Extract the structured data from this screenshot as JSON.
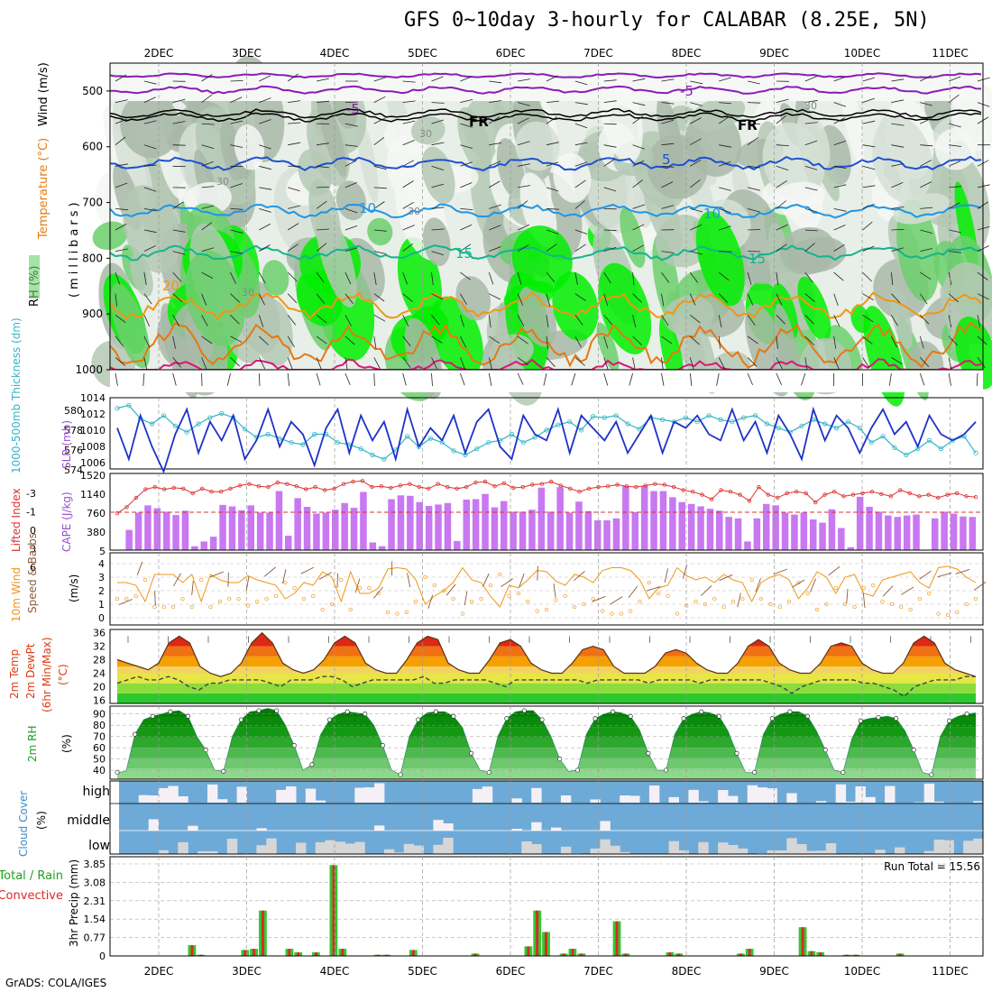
{
  "chart_data": {
    "type": "meteogram",
    "title": "GFS 0~10day 3-hourly for CALABAR (8.25E, 5N)",
    "credit": "GrADS: COLA/IGES",
    "time_axis": [
      "2DEC",
      "3DEC",
      "4DEC",
      "5DEC",
      "6DEC",
      "7DEC",
      "8DEC",
      "9DEC",
      "10DEC",
      "11DEC"
    ],
    "colors": {
      "rh_green": "#00ee00",
      "rh_mid": "#6ccf6c",
      "rh_gray": "#b4c8b4",
      "temp_neg5": "#8a1cb4",
      "temp_fr": "#000000",
      "temp_5": "#1e50d2",
      "temp_10": "#1e96e6",
      "temp_15": "#14b48c",
      "temp_20": "#f09614",
      "temp_25": "#e67814",
      "temp_30": "#dc1478",
      "slp": "#1e32c8",
      "thickness": "#32b4c8",
      "cape_bar": "#c878f0",
      "lifted_index": "#dc3232",
      "wind_speed": "#f09614",
      "cloud": "#6eaad7",
      "cloud_clear": "#f4f0f6",
      "precip_total": "#32c832",
      "precip_conv": "#dc2828"
    },
    "panels": [
      {
        "id": "upper-air",
        "labels": [
          "RH (%)",
          "Temperature (°C)",
          "Wind (m/s)",
          "(millibars)"
        ],
        "yticks": [
          500,
          600,
          700,
          800,
          900,
          1000
        ],
        "contour_labels": [
          "-5",
          "-5",
          "FR",
          "FR",
          "5",
          "10",
          "10",
          "15",
          "15",
          "20",
          "30",
          "30",
          "30",
          "30",
          "30"
        ]
      },
      {
        "id": "slp-thickness",
        "labels": [
          "1000-500mb Thickness (dm)",
          "SLP (mb)"
        ],
        "left_ticks": [
          "580",
          "578",
          "576",
          "574"
        ],
        "right_ticks": [
          "1014",
          "1012",
          "1010",
          "1008",
          "1006"
        ],
        "slp": [
          1010,
          1005,
          1012,
          1007,
          1003,
          1009,
          1013,
          1006,
          1011,
          1008,
          1012,
          1005,
          1008,
          1013,
          1007,
          1011,
          1009,
          1004,
          1010,
          1013,
          1006,
          1012,
          1008,
          1011,
          1005,
          1013,
          1007,
          1010,
          1008,
          1012,
          1006,
          1011,
          1013,
          1007,
          1005,
          1012,
          1009,
          1008,
          1013,
          1006,
          1012,
          1010,
          1008,
          1011,
          1006,
          1009,
          1012,
          1006,
          1011,
          1010,
          1012,
          1009,
          1008,
          1013,
          1008,
          1011,
          1006,
          1012,
          1009,
          1005,
          1013,
          1008,
          1012,
          1010,
          1006,
          1010,
          1013,
          1009,
          1011,
          1007,
          1012,
          1009,
          1008,
          1009,
          1011
        ],
        "thickness": [
          579.5,
          579.8,
          578.5,
          578,
          578.8,
          577.8,
          577.2,
          578,
          578.6,
          579,
          578.6,
          577.5,
          576.7,
          577,
          576.6,
          576.2,
          576,
          577,
          577,
          576.2,
          576,
          575.6,
          575,
          574.6,
          575.5,
          576.8,
          575.8,
          576.6,
          576.2,
          575.4,
          575,
          575.6,
          576.2,
          576.4,
          577,
          576.2,
          576.7,
          577.4,
          577.9,
          578.2,
          577.4,
          578.7,
          578.6,
          578.8,
          578,
          577.5,
          578.6,
          578.4,
          578.2,
          578.6,
          578.2,
          578.8,
          578.4,
          578.2,
          578.6,
          578.8,
          578,
          577.6,
          577.2,
          577.8,
          578.4,
          578,
          577.6,
          578.2,
          577.6,
          576.2,
          576.8,
          575.7,
          575,
          575.6,
          576.4,
          575.6,
          576.4,
          576.8,
          575.2
        ]
      },
      {
        "id": "cape-li",
        "labels": [
          "Lifted Index",
          "CAPE (J/kg)"
        ],
        "left_ticks": [
          "-3",
          "-1",
          "0",
          "3",
          "6"
        ],
        "right_ticks": [
          "1520",
          "1140",
          "760",
          "380",
          "5"
        ],
        "cape": [
          0,
          420,
          780,
          930,
          870,
          800,
          730,
          820,
          80,
          180,
          280,
          940,
          910,
          830,
          930,
          780,
          780,
          1230,
          300,
          1080,
          900,
          760,
          780,
          840,
          980,
          880,
          1210,
          160,
          80,
          1060,
          1140,
          1130,
          1000,
          920,
          950,
          980,
          190,
          1050,
          1060,
          1170,
          890,
          1020,
          800,
          800,
          840,
          1300,
          800,
          1310,
          780,
          1010,
          810,
          620,
          620,
          660,
          1330,
          790,
          1330,
          1230,
          1230,
          1100,
          1000,
          960,
          910,
          860,
          820,
          690,
          660,
          180,
          660,
          960,
          930,
          780,
          740,
          780,
          640,
          570,
          850,
          460,
          60,
          1110,
          900,
          800,
          720,
          690,
          720,
          740,
          10,
          660,
          800,
          760,
          700,
          690
        ],
        "lifted_index": [
          1.2,
          0.4,
          -0.8,
          -1.9,
          -2.2,
          -1.9,
          -2.1,
          -2.0,
          -1.4,
          -2.0,
          -1.6,
          -1.6,
          -2.0,
          -2.4,
          -2.6,
          -2.3,
          -2.2,
          -2.8,
          -2.6,
          -2.3,
          -1.9,
          -2.2,
          -1.8,
          -2.0,
          -2.6,
          -2.9,
          -3.0,
          -2.2,
          -2.3,
          -2.1,
          -2.4,
          -2.6,
          -2.2,
          -2.0,
          -2.6,
          -2.2,
          -2.0,
          -2.2,
          -2.8,
          -2.9,
          -2.3,
          -2.7,
          -2.1,
          -2.2,
          -2.5,
          -2.6,
          -2.9,
          -2.4,
          -2.0,
          -1.6,
          -2.0,
          -2.2,
          -2.3,
          -2.5,
          -2.3,
          -2.2,
          -2.4,
          -2.6,
          -2.5,
          -2.2,
          -1.8,
          -1.6,
          -1.2,
          -0.6,
          -1.8,
          -1.6,
          -1.2,
          -0.4,
          -2.2,
          -1.2,
          -0.8,
          -1.4,
          -1.6,
          -1.4,
          -0.2,
          -1.2,
          -1.6,
          -1.0,
          -1.2,
          -1.4,
          -1.6,
          -1.3,
          -1.0,
          -1.8,
          -1.4,
          -1.0,
          -1.2,
          -0.8,
          -1.2,
          -1.4,
          -1.0,
          -0.9
        ]
      },
      {
        "id": "wind10m",
        "labels": [
          "10m Wind",
          "Speed & Barbs",
          "(m/s)"
        ],
        "yticks": [
          "4",
          "3",
          "2",
          "1",
          "0"
        ],
        "speed": [
          1.4,
          1.4,
          1.6,
          2.8,
          0.8,
          0.8,
          0.8,
          1.4,
          0.8,
          2.8,
          0.8,
          1.2,
          1.4,
          1.4,
          0.9,
          1.2,
          1.4,
          1.6,
          2.6,
          2.2,
          1.4,
          1.6,
          0.6,
          1.0,
          2.8,
          0.6,
          2.2,
          2.2,
          1.8,
          0.4,
          0.3,
          0.4,
          1.2,
          3.0,
          2.4,
          2.0,
          1.4,
          0.3,
          1.2,
          1.4,
          2.4,
          3.2,
          1.6,
          1.8,
          1.2,
          0.5,
          0.6,
          1.3,
          1.6,
          0.8,
          1.0,
          1.4,
          0.5,
          0.3,
          0.3,
          0.5,
          1.2,
          2.6,
          1.8,
          1.6,
          0.3,
          0.9,
          1.2,
          1.0,
          1.4,
          0.8,
          1.2,
          1.4,
          2.8,
          1.4,
          1.0,
          0.8,
          1.2,
          2.6,
          1.8,
          0.6,
          1.0,
          2.2,
          1.0,
          0.8,
          2.2,
          2.4,
          1.2,
          1.0,
          0.8,
          0.6,
          1.4,
          1.8,
          0.3,
          0.2,
          0.4,
          1.0,
          1.4
        ]
      },
      {
        "id": "temp2m",
        "labels": [
          "2m Temp",
          "2m DewPt",
          "(6hr Min/Max)",
          "(°C)"
        ],
        "yticks": [
          "36",
          "32",
          "28",
          "24",
          "20",
          "16"
        ],
        "temp": [
          28,
          27,
          26,
          25,
          27,
          33,
          35,
          33,
          26,
          24,
          23,
          24,
          27,
          33,
          36,
          33,
          27,
          25,
          24,
          25,
          28,
          33,
          35,
          33,
          27,
          25,
          24,
          24,
          28,
          33,
          35,
          34,
          27,
          25,
          24,
          24,
          28,
          33,
          34,
          32,
          27,
          25,
          24,
          24,
          27,
          31,
          32,
          31,
          26,
          24,
          24,
          24,
          26,
          30,
          31,
          30,
          27,
          25,
          24,
          24,
          27,
          32,
          34,
          32,
          27,
          25,
          24,
          24,
          27,
          32,
          33,
          32,
          27,
          25,
          24,
          24,
          27,
          33,
          35,
          33,
          27,
          25,
          24,
          23
        ],
        "dewpoint": [
          21,
          22,
          23,
          22,
          22,
          23,
          22,
          20,
          19,
          21,
          21,
          22,
          22,
          22,
          22,
          21,
          20,
          22,
          22,
          22,
          23,
          23,
          22,
          20,
          21,
          22,
          22,
          22,
          22,
          22,
          23,
          21,
          21,
          22,
          22,
          22,
          22,
          21,
          20,
          22,
          22,
          22,
          22,
          22,
          22,
          22,
          21,
          22,
          22,
          22,
          22,
          22,
          21,
          22,
          22,
          22,
          22,
          21,
          22,
          22,
          22,
          22,
          22,
          22,
          21,
          20,
          18,
          20,
          21,
          22,
          22,
          22,
          22,
          21,
          21,
          20,
          19,
          17,
          20,
          21,
          22,
          22,
          22,
          23,
          23
        ]
      },
      {
        "id": "rh2m",
        "labels": [
          "2m RH",
          "(%)"
        ],
        "yticks": [
          "90",
          "80",
          "70",
          "60",
          "50",
          "40"
        ],
        "rh": [
          38,
          39,
          72,
          85,
          88,
          90,
          92,
          93,
          88,
          70,
          58,
          40,
          39,
          70,
          85,
          92,
          93,
          95,
          93,
          80,
          62,
          40,
          45,
          72,
          85,
          90,
          92,
          91,
          90,
          80,
          62,
          40,
          36,
          70,
          85,
          91,
          92,
          92,
          88,
          78,
          55,
          40,
          38,
          70,
          86,
          92,
          93,
          93,
          85,
          70,
          50,
          39,
          40,
          72,
          86,
          90,
          92,
          91,
          88,
          76,
          55,
          40,
          40,
          72,
          86,
          90,
          92,
          91,
          88,
          75,
          55,
          38,
          38,
          72,
          86,
          90,
          92,
          92,
          88,
          75,
          58,
          40,
          38,
          68,
          84,
          86,
          87,
          88,
          86,
          75,
          58,
          38,
          36,
          70,
          84,
          88,
          90,
          91
        ]
      },
      {
        "id": "cloud",
        "labels": [
          "Cloud Cover",
          "(%)"
        ],
        "level_labels": [
          "high",
          "middle",
          "low"
        ]
      },
      {
        "id": "precip",
        "labels": [
          "Total / Rain",
          "Convective",
          "3hr Precip (mm)"
        ],
        "yticks": [
          "3.85",
          "3.08",
          "2.31",
          "1.54",
          "0.77",
          "0"
        ],
        "run_total_label": "Run Total = 15.56",
        "precip": [
          0,
          0,
          0,
          0,
          0,
          0,
          0,
          0,
          0.45,
          0.05,
          0,
          0,
          0,
          0,
          0.25,
          0.3,
          1.9,
          0,
          0,
          0.3,
          0.15,
          0,
          0.15,
          0,
          3.8,
          0.3,
          0,
          0,
          0,
          0.05,
          0.05,
          0,
          0,
          0.25,
          0,
          0,
          0,
          0,
          0,
          0,
          0.1,
          0,
          0,
          0,
          0,
          0,
          0.4,
          1.9,
          1.0,
          0,
          0.1,
          0.3,
          0.1,
          0,
          0,
          0,
          1.45,
          0.1,
          0,
          0,
          0,
          0,
          0.15,
          0.1,
          0,
          0,
          0,
          0,
          0,
          0,
          0.1,
          0.3,
          0,
          0,
          0,
          0,
          0,
          1.2,
          0.2,
          0.15,
          0,
          0,
          0.05,
          0.05,
          0,
          0,
          0,
          0,
          0.1,
          0,
          0,
          0,
          0,
          0,
          0,
          0,
          0
        ]
      }
    ]
  }
}
